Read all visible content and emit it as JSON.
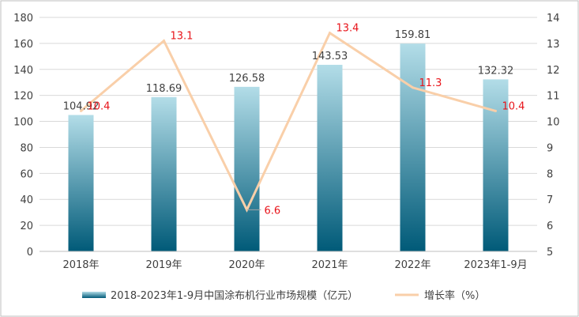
{
  "chart_data": {
    "type": "bar",
    "categories": [
      "2018年",
      "2019年",
      "2020年",
      "2021年",
      "2022年",
      "2023年1-9月"
    ],
    "series": [
      {
        "name": "2018-2023年1-9月中国涂布机行业市场规模（亿元）",
        "type": "bar",
        "axis": "left",
        "values": [
          104.92,
          118.69,
          126.58,
          143.53,
          159.81,
          132.32
        ]
      },
      {
        "name": "增长率（%）",
        "type": "line",
        "axis": "right",
        "values": [
          10.4,
          13.1,
          6.6,
          13.4,
          11.3,
          10.4
        ]
      }
    ],
    "bar_value_labels": [
      "104.92",
      "118.69",
      "126.58",
      "143.53",
      "159.81",
      "132.32"
    ],
    "line_value_labels": [
      "10.4",
      "13.1",
      "6.6",
      "13.4",
      "11.3",
      "10.4"
    ],
    "y_left": {
      "min": 0,
      "max": 180,
      "ticks": [
        "0",
        "20",
        "40",
        "60",
        "80",
        "100",
        "120",
        "140",
        "160",
        "180"
      ]
    },
    "y_right": {
      "min": 5,
      "max": 14,
      "ticks": [
        "5",
        "6",
        "7",
        "8",
        "9",
        "10",
        "11",
        "12",
        "13",
        "14"
      ]
    },
    "grid": true,
    "legend_position": "bottom",
    "colors": {
      "bar_top": "#b3dde8",
      "bar_bottom": "#005a78",
      "line": "#f9cfa9",
      "rate_label": "#e8141a",
      "text": "#404040",
      "grid": "#d9d9d9"
    }
  }
}
